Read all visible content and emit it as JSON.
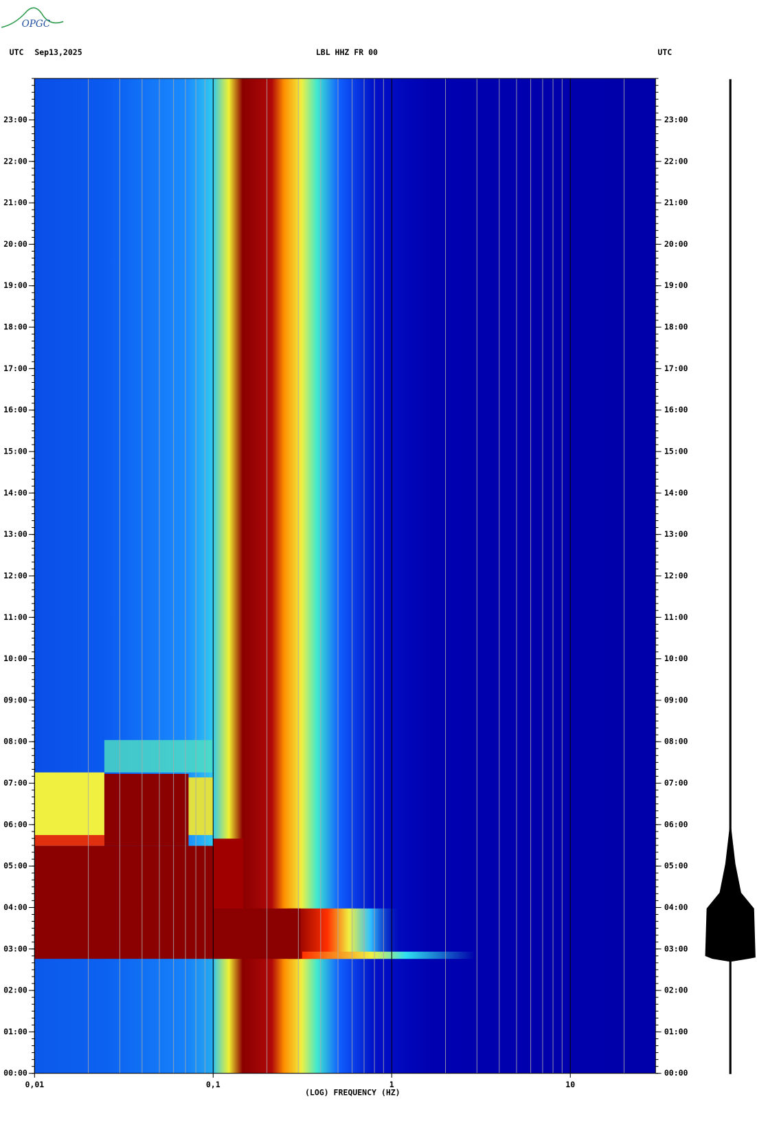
{
  "chart_data": {
    "type": "spectrogram",
    "logo": "OPGC",
    "header_left": "UTC",
    "date": "Sep13,2025",
    "title": "LBL HHZ FR 00",
    "header_right": "UTC",
    "xlabel": "(LOG) FREQUENCY (HZ)",
    "xscale": "log",
    "xlim": [
      0.01,
      30
    ],
    "xticks": [
      {
        "value": 0.01,
        "label": "0,01"
      },
      {
        "value": 0.1,
        "label": "0,1"
      },
      1,
      10
    ],
    "ylim": [
      0,
      24
    ],
    "yticks": [
      {
        "value": 0,
        "label": "00:00"
      },
      {
        "value": 1,
        "label": "01:00"
      },
      {
        "value": 2,
        "label": "02:00"
      },
      {
        "value": 3,
        "label": "03:00"
      },
      {
        "value": 4,
        "label": "04:00"
      },
      {
        "value": 5,
        "label": "05:00"
      },
      {
        "value": 6,
        "label": "06:00"
      },
      {
        "value": 7,
        "label": "07:00"
      },
      {
        "value": 8,
        "label": "08:00"
      },
      {
        "value": 9,
        "label": "09:00"
      },
      {
        "value": 10,
        "label": "10:00"
      },
      {
        "value": 11,
        "label": "11:00"
      },
      {
        "value": 12,
        "label": "12:00"
      },
      {
        "value": 13,
        "label": "13:00"
      },
      {
        "value": 14,
        "label": "14:00"
      },
      {
        "value": 15,
        "label": "15:00"
      },
      {
        "value": 16,
        "label": "16:00"
      },
      {
        "value": 17,
        "label": "17:00"
      },
      {
        "value": 18,
        "label": "18:00"
      },
      {
        "value": 19,
        "label": "19:00"
      },
      {
        "value": 20,
        "label": "20:00"
      },
      {
        "value": 21,
        "label": "21:00"
      },
      {
        "value": 22,
        "label": "22:00"
      },
      {
        "value": 23,
        "label": "23:00"
      }
    ],
    "grid": true
  }
}
